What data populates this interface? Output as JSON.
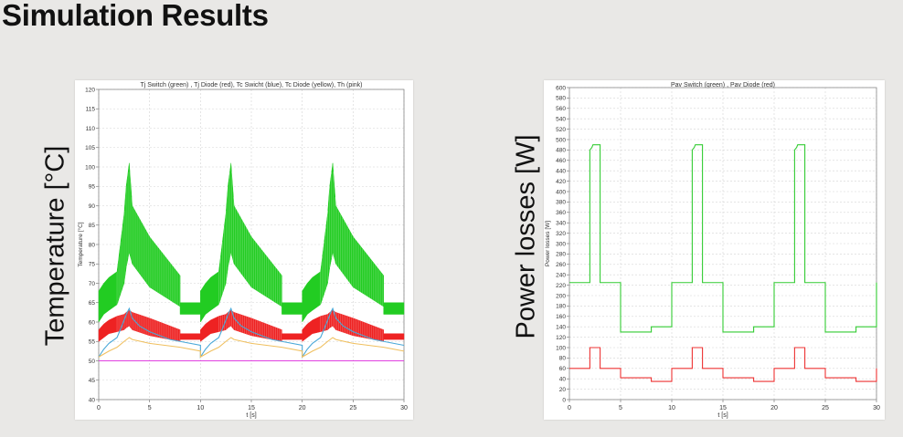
{
  "slide": {
    "title": "Simulation Results",
    "left_side_label": "Temperature [°C]",
    "right_side_label": "Power losses [W]"
  },
  "chart_data": [
    {
      "type": "line",
      "title": "Tj Switch (green) , Tj Diode (red), Tc Swicht (blue), Tc Diode (yellow), Th (pink)",
      "xlabel": "t [s]",
      "ylabel": "Temperature [°C]",
      "xlim": [
        0,
        30
      ],
      "ylim": [
        40,
        120
      ],
      "x_ticks": [
        0,
        5,
        10,
        15,
        20,
        25,
        30
      ],
      "y_ticks": [
        40,
        45,
        50,
        55,
        60,
        65,
        70,
        75,
        80,
        85,
        90,
        95,
        100,
        105,
        110,
        115,
        120
      ],
      "grid": true,
      "period": 10,
      "series": [
        {
          "name": "Tj Switch",
          "color": "#22cc22",
          "band": true,
          "x": [
            0,
            0.5,
            1,
            1.8,
            1.8,
            2.5,
            2.7,
            3,
            3.3,
            5,
            8,
            8,
            10
          ],
          "upper": [
            68,
            70,
            71.5,
            73,
            73,
            88,
            95,
            101,
            90,
            82,
            72,
            65,
            65
          ],
          "lower": [
            60,
            62,
            63,
            64.5,
            64.5,
            70,
            74,
            78,
            75,
            69,
            64,
            62,
            62
          ]
        },
        {
          "name": "Tj Diode",
          "color": "#ee2222",
          "band": true,
          "x": [
            0,
            0.5,
            1,
            1.8,
            1.8,
            2.5,
            2.7,
            3,
            3.3,
            5,
            8,
            8,
            10
          ],
          "upper": [
            58,
            59.5,
            60.5,
            61.5,
            61.5,
            62,
            62.5,
            63,
            62.5,
            61,
            58,
            57,
            57
          ],
          "lower": [
            55,
            56,
            57,
            57.5,
            57.5,
            58,
            58.5,
            59,
            58,
            56.5,
            55,
            55.5,
            55.5
          ]
        },
        {
          "name": "Tc Switch",
          "color": "#4aa8d8",
          "band": false,
          "x": [
            0,
            0.5,
            1,
            1.8,
            2.2,
            2.8,
            3,
            3.3,
            4,
            5,
            6,
            7,
            8,
            10
          ],
          "y": [
            51,
            53,
            54.5,
            56,
            58.5,
            62.5,
            63.5,
            61,
            59,
            57.5,
            56.5,
            55.5,
            55,
            54
          ]
        },
        {
          "name": "Tc Diode",
          "color": "#f0c060",
          "band": false,
          "x": [
            0,
            1,
            1.8,
            2.5,
            3,
            3.3,
            5,
            8,
            10
          ],
          "y": [
            51,
            52.5,
            53.5,
            55,
            56,
            55.5,
            54.5,
            53.5,
            52.5
          ]
        },
        {
          "name": "Th",
          "color": "#e040e0",
          "band": false,
          "x": [
            0,
            30
          ],
          "y": [
            50,
            50
          ]
        }
      ]
    },
    {
      "type": "line",
      "title": "Pav Switch (green) , Pav Diode (red)",
      "xlabel": "t [s]",
      "ylabel": "Power losses [W]",
      "xlim": [
        0,
        30
      ],
      "ylim": [
        0,
        600
      ],
      "x_ticks": [
        0,
        5,
        10,
        15,
        20,
        25,
        30
      ],
      "y_ticks": [
        0,
        20,
        40,
        60,
        80,
        100,
        120,
        140,
        160,
        180,
        200,
        220,
        240,
        260,
        280,
        300,
        320,
        340,
        360,
        380,
        400,
        420,
        440,
        460,
        480,
        500,
        520,
        540,
        560,
        580,
        600
      ],
      "grid": true,
      "series": [
        {
          "name": "Pav Switch",
          "color": "#33cc33",
          "x": [
            0,
            2,
            2,
            2.2,
            2.3,
            2.5,
            3,
            3,
            5,
            5,
            8,
            8,
            10,
            10,
            12,
            12,
            12.2,
            12.3,
            12.5,
            13,
            13,
            15,
            15,
            18,
            18,
            20,
            20,
            22,
            22,
            22.2,
            22.3,
            22.5,
            23,
            23,
            25,
            25,
            28,
            28,
            30,
            30
          ],
          "y": [
            225,
            225,
            480,
            485,
            490,
            490,
            490,
            225,
            225,
            130,
            130,
            140,
            140,
            225,
            225,
            480,
            485,
            490,
            490,
            490,
            225,
            225,
            130,
            130,
            140,
            140,
            225,
            225,
            480,
            485,
            490,
            490,
            490,
            225,
            225,
            130,
            130,
            140,
            140,
            225
          ]
        },
        {
          "name": "Pav Diode",
          "color": "#ee3333",
          "x": [
            0,
            2,
            2,
            3,
            3,
            5,
            5,
            8,
            8,
            10,
            10,
            12,
            12,
            13,
            13,
            15,
            15,
            18,
            18,
            20,
            20,
            22,
            22,
            23,
            23,
            25,
            25,
            28,
            28,
            30,
            30
          ],
          "y": [
            60,
            60,
            100,
            100,
            60,
            60,
            42,
            42,
            35,
            35,
            60,
            60,
            100,
            100,
            60,
            60,
            42,
            42,
            35,
            35,
            60,
            60,
            100,
            100,
            60,
            60,
            42,
            42,
            35,
            35,
            60
          ]
        }
      ]
    }
  ]
}
